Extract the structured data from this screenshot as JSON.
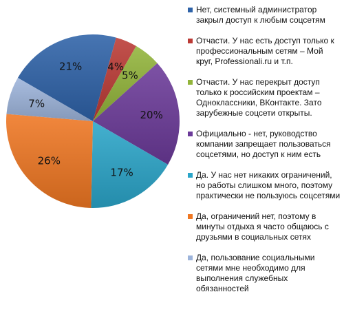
{
  "chart_data": {
    "type": "pie",
    "start_angle_deg": -60,
    "slices": [
      {
        "label": "Нет, системный администратор закрыл доступ к любым соцсетям",
        "value": 21,
        "display": "21%",
        "color": "#2E62A8"
      },
      {
        "label": "Отчасти. У нас есть доступ только к профессиональным сетям – Мой круг, Professionali.ru и т.п.",
        "value": 4,
        "display": "4%",
        "color": "#BB3A35"
      },
      {
        "label": "Отчасти. У нас перекрыт доступ только к российским проектам – Одноклассники, ВКонтакте. Зато зарубежные соцсети открыты.",
        "value": 5,
        "display": "5%",
        "color": "#92B43A"
      },
      {
        "label": "Официально - нет, руководство компании запрещает пользоваться соцсетями, но доступ к ним есть",
        "value": 20,
        "display": "20%",
        "color": "#6B3A99"
      },
      {
        "label": "Да. У нас нет никаких ограничений, но работы слишком много, поэтому практически не пользуюсь соцсетями",
        "value": 17,
        "display": "17%",
        "color": "#2AA5C9"
      },
      {
        "label": "Да, ограничений нет, поэтому в минуты отдыха я часто общаюсь с друзьями в социальных сетях",
        "value": 26,
        "display": "26%",
        "color": "#EF7722"
      },
      {
        "label": "Да, пользование социальными сетями мне необходимо для выполнения служебных обязанностей",
        "value": 7,
        "display": "7%",
        "color": "#9DB4DB"
      }
    ],
    "legend_position": "right"
  }
}
